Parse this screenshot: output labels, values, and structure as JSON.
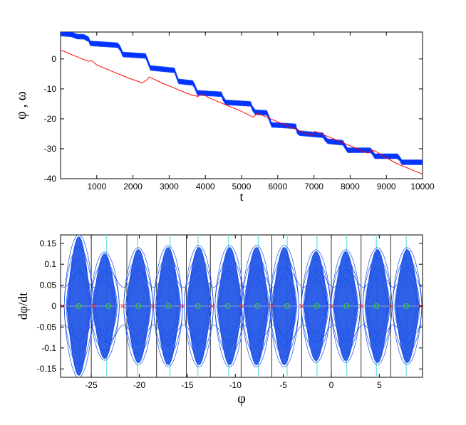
{
  "chart_data": [
    {
      "type": "line",
      "xlabel": "t",
      "ylabel": "φ , ω",
      "xlim": [
        0,
        10000
      ],
      "ylim": [
        -40,
        9
      ],
      "xticks": [
        1000,
        2000,
        3000,
        4000,
        5000,
        6000,
        7000,
        8000,
        9000,
        10000
      ],
      "yticks": [
        0,
        -10,
        -20,
        -30,
        -40
      ],
      "series": [
        {
          "color": "#0033ff",
          "style": "stepped, oscillating",
          "x": [
            0,
            300,
            450,
            650,
            780,
            820,
            1580,
            1650,
            1720,
            2350,
            2400,
            2480,
            3150,
            3180,
            3260,
            3650,
            3700,
            3780,
            4450,
            4480,
            4560,
            5250,
            5300,
            5380,
            5700,
            5750,
            5830,
            6500,
            6530,
            6600,
            7250,
            7300,
            7380,
            7800,
            7850,
            7930,
            8550,
            8600,
            8680,
            9300,
            9350,
            9430,
            10000
          ],
          "values": [
            8.5,
            8.2,
            7.5,
            7.4,
            6.5,
            5.2,
            4.6,
            3.5,
            1.5,
            1.0,
            -0.5,
            -3.0,
            -3.8,
            -5.0,
            -7.5,
            -8.0,
            -9.0,
            -11.3,
            -11.8,
            -13.0,
            -14.5,
            -15.0,
            -16.5,
            -17.8,
            -18.0,
            -19.5,
            -22.0,
            -22.5,
            -24.0,
            -24.8,
            -25.5,
            -26.5,
            -27.5,
            -28.0,
            -29.0,
            -30.5,
            -30.5,
            -31.0,
            -32.5,
            -32.5,
            -33.0,
            -34.5,
            -34.5
          ]
        },
        {
          "color": "#ff0000",
          "style": "line",
          "x": [
            0,
            200,
            500,
            700,
            780,
            850,
            1000,
            1400,
            1800,
            2250,
            2380,
            2450,
            2500,
            2800,
            3200,
            3600,
            3800,
            3870,
            3950,
            4200,
            4600,
            5000,
            5330,
            5420,
            5480,
            5600,
            6000,
            6400,
            6800,
            6950,
            7020,
            7100,
            7400,
            7800,
            8200,
            8400,
            8500,
            8580,
            8700,
            9000,
            9300,
            9700,
            10000
          ],
          "values": [
            3.0,
            2.0,
            0.5,
            -0.5,
            -0.8,
            -0.5,
            -2.0,
            -4.0,
            -6.0,
            -8.0,
            -7.0,
            -6.0,
            -6.3,
            -8.0,
            -10.0,
            -12.0,
            -12.5,
            -11.8,
            -12.0,
            -13.5,
            -15.5,
            -17.5,
            -19.5,
            -18.2,
            -18.2,
            -19.0,
            -21.0,
            -23.0,
            -25.0,
            -25.5,
            -24.2,
            -24.5,
            -26.0,
            -28.0,
            -30.0,
            -31.0,
            -31.5,
            -30.5,
            -30.8,
            -33.0,
            -35.0,
            -37.0,
            -38.5
          ]
        }
      ]
    },
    {
      "type": "scatter",
      "xlabel": "φ",
      "ylabel": "dφ/dt",
      "xlim": [
        -28.2,
        9.5
      ],
      "ylim": [
        -0.17,
        0.17
      ],
      "xticks": [
        -25,
        -20,
        -15,
        -10,
        -5,
        0,
        5
      ],
      "yticks": [
        0.15,
        0.1,
        0.05,
        0,
        -0.05,
        -0.1,
        -0.15
      ],
      "lobes": {
        "color": "#1a4fe6",
        "centers": [
          -26.3,
          -23.6,
          -20.1,
          -17.0,
          -13.8,
          -10.6,
          -7.8,
          -4.9,
          -1.6,
          1.5,
          4.8,
          7.9
        ],
        "amplitudes": [
          0.165,
          0.125,
          0.135,
          0.14,
          0.14,
          0.14,
          0.14,
          0.14,
          0.13,
          0.13,
          0.135,
          0.135
        ]
      },
      "black_vlines": [
        -25.0,
        -21.3,
        -18.2,
        -15.1,
        -12.6,
        -9.4,
        -6.2,
        -3.1,
        -0.0,
        3.1,
        6.2
      ],
      "cyan_vlines": [
        -26.2,
        -23.4,
        -20.2,
        -16.8,
        -13.9,
        -10.7,
        -7.6,
        -4.6,
        -1.5,
        1.6,
        4.7,
        7.8
      ],
      "red_x_markers": [
        -28.0,
        -24.8,
        -21.7,
        -18.6,
        -15.5,
        -12.4,
        -9.3,
        -6.2,
        -3.1,
        0.0,
        3.1,
        6.2,
        9.3
      ],
      "green_o_markers": [
        -26.3,
        -23.2,
        -20.1,
        -17.0,
        -13.9,
        -10.8,
        -7.7,
        -4.6,
        -1.5,
        1.6,
        4.7,
        7.8
      ]
    }
  ]
}
